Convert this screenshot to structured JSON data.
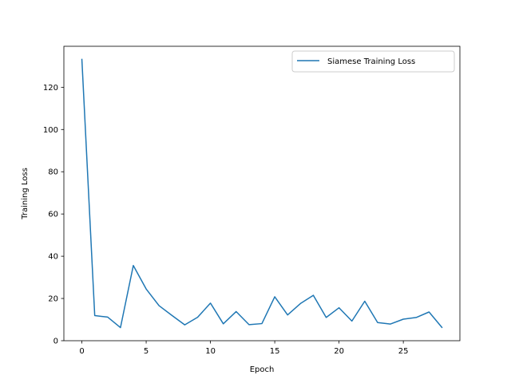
{
  "chart_data": {
    "type": "line",
    "title": "",
    "xlabel": "Epoch",
    "ylabel": "Training Loss",
    "xlim": [
      -1.4,
      29.4
    ],
    "ylim": [
      0,
      139.4
    ],
    "xticks": [
      0,
      5,
      10,
      15,
      20,
      25
    ],
    "yticks": [
      0,
      20,
      40,
      60,
      80,
      100,
      120
    ],
    "grid": false,
    "legend": "top-right",
    "series": [
      {
        "name": "Siamese Training Loss",
        "color": "#1f77b4",
        "x": [
          0,
          1,
          2,
          3,
          4,
          5,
          6,
          7,
          8,
          9,
          10,
          11,
          12,
          13,
          14,
          15,
          16,
          17,
          18,
          19,
          20,
          21,
          22,
          23,
          24,
          25,
          26,
          27,
          28
        ],
        "y": [
          133.2,
          11.9,
          11.2,
          6.2,
          35.6,
          24.5,
          16.6,
          12.0,
          7.5,
          11.1,
          17.8,
          8.0,
          13.8,
          7.6,
          8.1,
          20.8,
          12.2,
          17.6,
          21.5,
          11.0,
          15.6,
          9.3,
          18.7,
          8.6,
          7.9,
          10.2,
          11.0,
          13.6,
          6.3
        ]
      }
    ]
  }
}
